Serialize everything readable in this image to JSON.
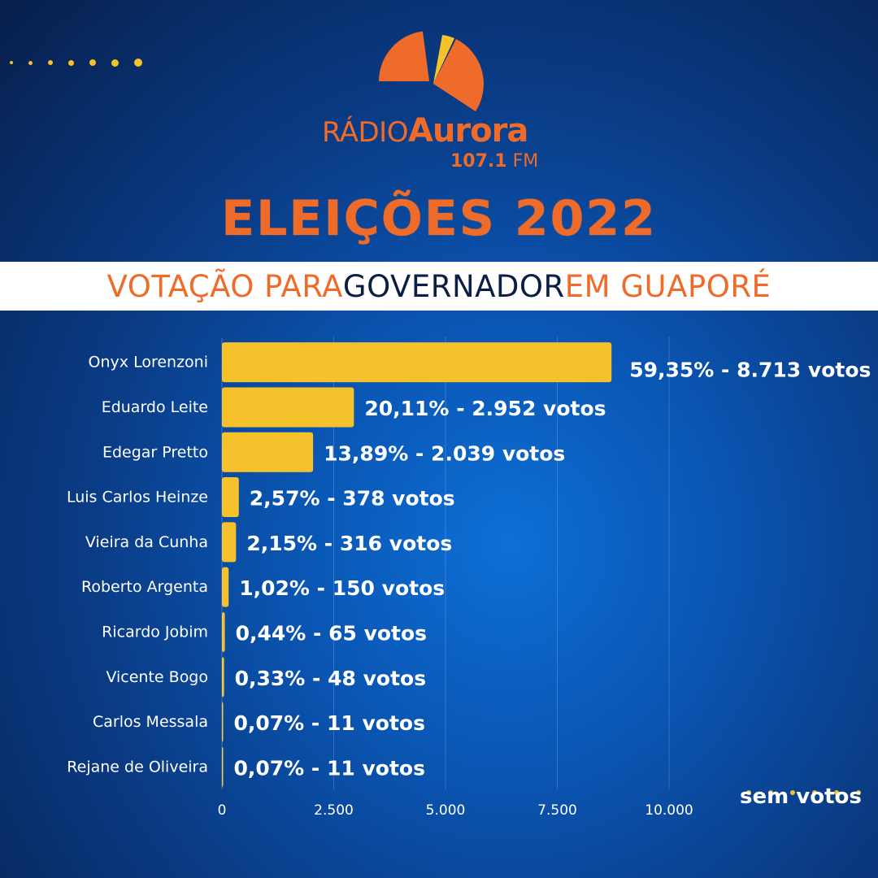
{
  "brand": {
    "radio_prefix": "RÁDIO",
    "radio_name": "Aurora",
    "frequency_number": "107.1",
    "frequency_unit": "FM",
    "accent_color": "#ee6b2a",
    "secondary_color": "#f5c22b"
  },
  "headline": "ELEIÇÕES 2022",
  "banner": {
    "part1": "VOTAÇÃO PARA ",
    "part2": "GOVERNADOR",
    "part3": " EM GUAPORÉ"
  },
  "footnote": "sem votos",
  "chart_data": {
    "type": "bar",
    "orientation": "horizontal",
    "categories": [
      "Onyx Lorenzoni",
      "Eduardo Leite",
      "Edegar Pretto",
      "Luis Carlos Heinze",
      "Vieira da Cunha",
      "Roberto Argenta",
      "Ricardo Jobim",
      "Vicente Bogo",
      "Carlos Messala",
      "Rejane de Oliveira"
    ],
    "values": [
      8713,
      2952,
      2039,
      378,
      316,
      150,
      65,
      48,
      11,
      11
    ],
    "labels": [
      "59,35% - 8.713 votos",
      "20,11% - 2.952 votos",
      "13,89% - 2.039 votos",
      "2,57% - 378 votos",
      "2,15% - 316 votos",
      "1,02% - 150 votos",
      "0,44% - 65 votos",
      "0,33% - 48 votos",
      "0,07% - 11 votos",
      "0,07% - 11 votos"
    ],
    "xlim": [
      0,
      10000
    ],
    "xticks": [
      0,
      2500,
      5000,
      7500,
      10000
    ],
    "xtick_labels": [
      "0",
      "2.500",
      "5.000",
      "7.500",
      "10.000"
    ],
    "grid": true,
    "bar_color": "#f5c22b"
  }
}
